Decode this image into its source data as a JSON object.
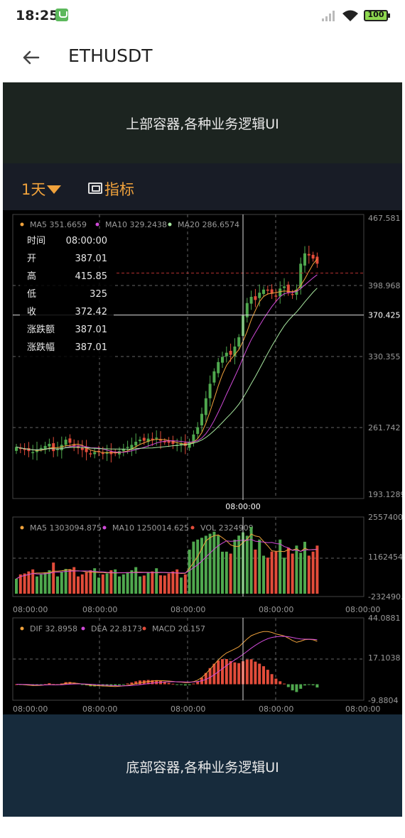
{
  "status_bar": {
    "time": "18:25",
    "battery": "100"
  },
  "toolbar": {
    "title": "ETHUSDT"
  },
  "top_container": {
    "label": "上部容器,各种业务逻辑UI"
  },
  "tabs": {
    "period": "1天",
    "indicator": "指标"
  },
  "bottom_container": {
    "label": "底部容器,各种业务逻辑UI"
  },
  "colors": {
    "up": "#4fa84e",
    "down": "#e24c3a",
    "ma5": "#f0a23c",
    "ma10": "#d04ad8",
    "ma20": "#a8e8a0",
    "grid": "#444444",
    "text": "#9a9a9a"
  },
  "chart_data": {
    "type": "candlestick",
    "main": {
      "legend": [
        {
          "name": "MA5",
          "value": "351.6659"
        },
        {
          "name": "MA10",
          "value": "329.2438"
        },
        {
          "name": "MA20",
          "value": "286.6574"
        }
      ],
      "y_ticks": [
        "467.581",
        "398.968",
        "330.355",
        "261.742",
        "193.1289"
      ],
      "ylim": [
        193.1289,
        467.581
      ],
      "crosshair_price": "370.425",
      "crosshair_time": "08:00:00",
      "info": [
        {
          "label": "时间",
          "value": "08:00:00"
        },
        {
          "label": "开",
          "value": "387.01"
        },
        {
          "label": "高",
          "value": "415.85"
        },
        {
          "label": "低",
          "value": "325"
        },
        {
          "label": "收",
          "value": "372.42"
        },
        {
          "label": "涨跌额",
          "value": "387.01"
        },
        {
          "label": "涨跌幅",
          "value": "387.01"
        }
      ],
      "closes": [
        243,
        241,
        240,
        239,
        238,
        240,
        242,
        244,
        246,
        239,
        241,
        245,
        250,
        247,
        244,
        242,
        240,
        238,
        236,
        238,
        239,
        237,
        238,
        236,
        237,
        239,
        241,
        243,
        245,
        248,
        250,
        249,
        251,
        250,
        252,
        249,
        248,
        247,
        246,
        245,
        246,
        244,
        248,
        255,
        262,
        275,
        290,
        304,
        316,
        325,
        330,
        334,
        332,
        340,
        349,
        370,
        382,
        388,
        385,
        392,
        395,
        394,
        391,
        389,
        396,
        398,
        392,
        390,
        395,
        420,
        430,
        428,
        425,
        420
      ]
    },
    "volume": {
      "legend": [
        {
          "name": "MA5",
          "value": "1303094.875"
        },
        {
          "name": "MA10",
          "value": "1250014.625"
        },
        {
          "name": "VOL",
          "value": "2324909"
        }
      ],
      "y_ticks": [
        "2557400",
        "1162454.6",
        "-232490."
      ],
      "x_ticks": [
        "08:00:00",
        "08:00:00",
        "08:00:00",
        "08:00:00",
        "08:00:00"
      ]
    },
    "macd": {
      "legend": [
        {
          "name": "DIF",
          "value": "32.8958"
        },
        {
          "name": "DEA",
          "value": "22.8173"
        },
        {
          "name": "MACD",
          "value": "20.157"
        }
      ],
      "y_ticks": [
        "44.0881",
        "17.1038",
        "-9.8804"
      ],
      "x_ticks": [
        "08:00:00",
        "08:00:00",
        "08:00:00",
        "08:00:00",
        "08:00:00"
      ]
    }
  }
}
